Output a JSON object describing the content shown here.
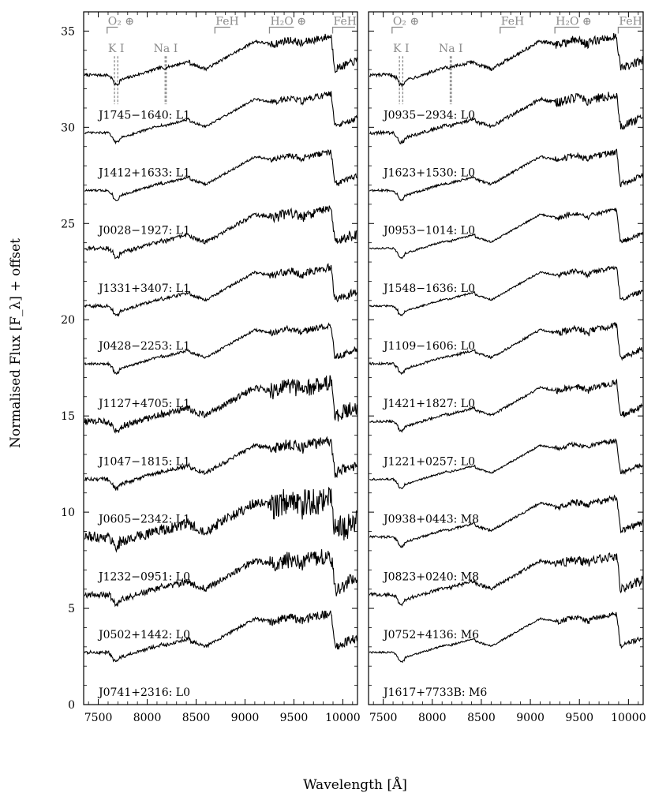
{
  "figure": {
    "ylabel": "Normalised Flux [F_λ] + offset",
    "xlabel": "Wavelength [Å]"
  },
  "chart_data": [
    {
      "type": "line",
      "panel": "left",
      "xlim": [
        7350,
        10150
      ],
      "ylim": [
        0,
        36
      ],
      "xticks": [
        7500,
        8000,
        8500,
        9000,
        9500,
        10000
      ],
      "xtick_labels": [
        "7500",
        "8000",
        "8500",
        "9000",
        "9500",
        "10000"
      ],
      "yticks": [
        0,
        5,
        10,
        15,
        20,
        25,
        30,
        35
      ],
      "ytick_labels": [
        "0",
        "5",
        "10",
        "15",
        "20",
        "25",
        "30",
        "35"
      ],
      "annotations": [
        {
          "text": "O₂ ⊕",
          "kind": "band",
          "x0": 7590,
          "x1": 7700
        },
        {
          "text": "K I",
          "kind": "lines",
          "x": [
            7665,
            7699
          ]
        },
        {
          "text": "Na I",
          "kind": "lines",
          "x": [
            8183,
            8195
          ]
        },
        {
          "text": "FeH",
          "kind": "band",
          "x0": 8692,
          "x1": 8850
        },
        {
          "text": "H₂O ⊕",
          "kind": "band",
          "x0": 9250,
          "x1": 9500
        },
        {
          "text": "FeH",
          "kind": "band",
          "x0": 9896,
          "x1": 10150
        }
      ],
      "series": [
        {
          "name": "J1745−1640: L1",
          "offset": 30,
          "noise": 0.25
        },
        {
          "name": "J1412+1633: L1",
          "offset": 27,
          "noise": 0.2
        },
        {
          "name": "J0028−1927: L1",
          "offset": 24,
          "noise": 0.2
        },
        {
          "name": "J1331+3407: L1",
          "offset": 21,
          "noise": 0.35
        },
        {
          "name": "J0428−2253: L1",
          "offset": 18,
          "noise": 0.25
        },
        {
          "name": "J1127+4705: L1",
          "offset": 15,
          "noise": 0.2
        },
        {
          "name": "J1047−1815: L1",
          "offset": 12,
          "noise": 0.55
        },
        {
          "name": "J0605−2342: L1",
          "offset": 9,
          "noise": 0.35
        },
        {
          "name": "J1232−0951: L0",
          "offset": 6,
          "noise": 0.9
        },
        {
          "name": "J0502+1442: L0",
          "offset": 3,
          "noise": 0.55
        },
        {
          "name": "J0741+2316: L0",
          "offset": 0,
          "noise": 0.3
        }
      ]
    },
    {
      "type": "line",
      "panel": "right",
      "xlim": [
        7350,
        10150
      ],
      "ylim": [
        0,
        36
      ],
      "xticks": [
        7500,
        8000,
        8500,
        9000,
        9500,
        10000
      ],
      "xtick_labels": [
        "7500",
        "8000",
        "8500",
        "9000",
        "9500",
        "10000"
      ],
      "annotations": [
        {
          "text": "O₂ ⊕",
          "kind": "band",
          "x0": 7590,
          "x1": 7700
        },
        {
          "text": "K I",
          "kind": "lines",
          "x": [
            7665,
            7699
          ]
        },
        {
          "text": "Na I",
          "kind": "lines",
          "x": [
            8183,
            8195
          ]
        },
        {
          "text": "FeH",
          "kind": "band",
          "x0": 8692,
          "x1": 8850
        },
        {
          "text": "H₂O ⊕",
          "kind": "band",
          "x0": 9250,
          "x1": 9500
        },
        {
          "text": "FeH",
          "kind": "band",
          "x0": 9896,
          "x1": 10150
        }
      ],
      "series": [
        {
          "name": "J0935−2934: L0",
          "offset": 30,
          "noise": 0.3
        },
        {
          "name": "J1623+1530: L0",
          "offset": 27,
          "noise": 0.3
        },
        {
          "name": "J0953−1014: L0",
          "offset": 24,
          "noise": 0.2
        },
        {
          "name": "J1548−1636: L0",
          "offset": 21,
          "noise": 0.15
        },
        {
          "name": "J1109−1606: L0",
          "offset": 18,
          "noise": 0.15
        },
        {
          "name": "J1421+1827: L0",
          "offset": 15,
          "noise": 0.2
        },
        {
          "name": "J1221+0257: L0",
          "offset": 12,
          "noise": 0.2
        },
        {
          "name": "J0938+0443: M8",
          "offset": 9,
          "noise": 0.15
        },
        {
          "name": "J0823+0240: M8",
          "offset": 6,
          "noise": 0.2
        },
        {
          "name": "J0752+4136: M6",
          "offset": 3,
          "noise": 0.3
        },
        {
          "name": "J1617+7733B: M6",
          "offset": 0,
          "noise": 0.15
        }
      ]
    }
  ]
}
